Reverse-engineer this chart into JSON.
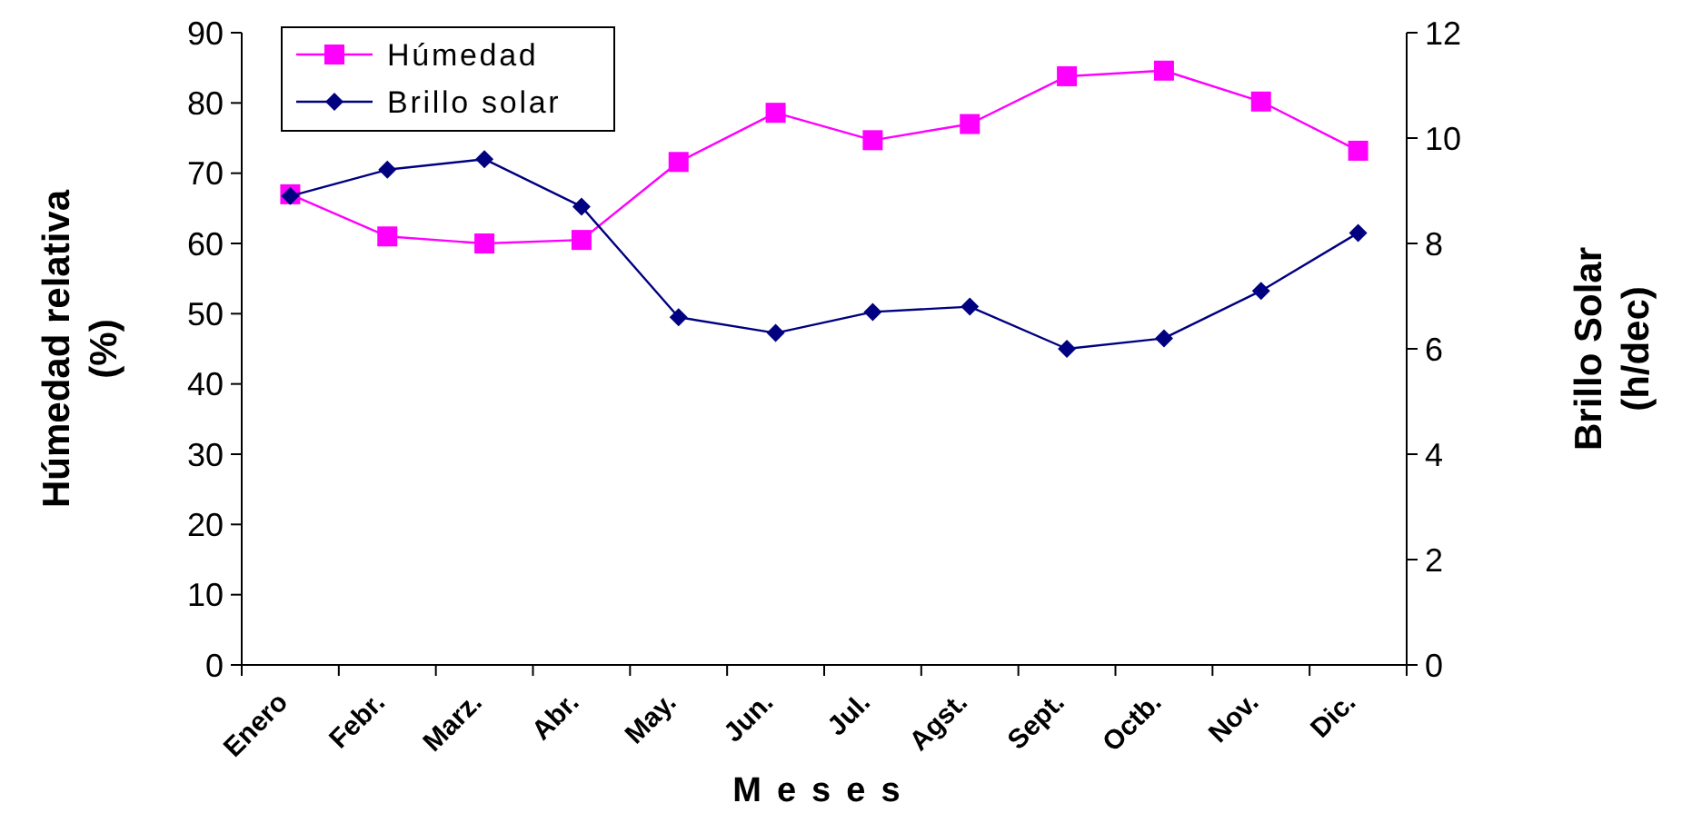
{
  "chart_data": {
    "type": "line",
    "xlabel": "Meses",
    "ylabel": "Húmedad relativa\n(%)",
    "y2label": "Brillo Solar\n(h/dec)",
    "categories": [
      "Enero",
      "Febr.",
      "Marz.",
      "Abr.",
      "May.",
      "Jun.",
      "Jul.",
      "Agst.",
      "Sept.",
      "Octb.",
      "Nov.",
      "Dic."
    ],
    "series": [
      {
        "name": "Húmedad",
        "color": "#ff00ff",
        "marker": "square",
        "values": [
          67,
          61,
          60,
          60.5,
          71.6,
          78.6,
          74.7,
          77,
          83.8,
          84.6,
          80.2,
          73.2
        ]
      },
      {
        "name": "Brillo solar",
        "color": "#000080",
        "marker": "diamond",
        "axis": "y2",
        "values": [
          8.9,
          9.4,
          9.6,
          8.7,
          6.6,
          6.3,
          6.7,
          6.8,
          6.0,
          6.2,
          7.1,
          8.2
        ]
      }
    ],
    "ylim": [
      0,
      90
    ],
    "yticks": [
      0,
      10,
      20,
      30,
      40,
      50,
      60,
      70,
      80,
      90
    ],
    "y2lim": [
      0,
      12
    ],
    "y2ticks": [
      0,
      2,
      4,
      6,
      8,
      10,
      12
    ],
    "legend": "top left",
    "grid": false
  }
}
